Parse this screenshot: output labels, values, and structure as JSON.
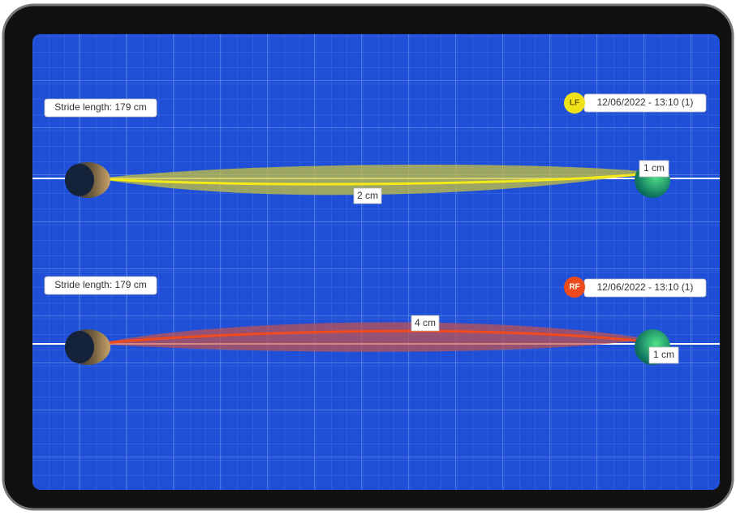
{
  "panels": [
    {
      "stride_label": "Stride length: 179 cm",
      "foot": "LF",
      "timestamp": "12/06/2022 - 13:10 (1)",
      "end_label": "1 cm",
      "mid_label": "2 cm"
    },
    {
      "stride_label": "Stride length: 179 cm",
      "foot": "RF",
      "timestamp": "12/06/2022 - 13:10 (1)",
      "end_label": "1 cm",
      "mid_label": "4 cm"
    }
  ]
}
